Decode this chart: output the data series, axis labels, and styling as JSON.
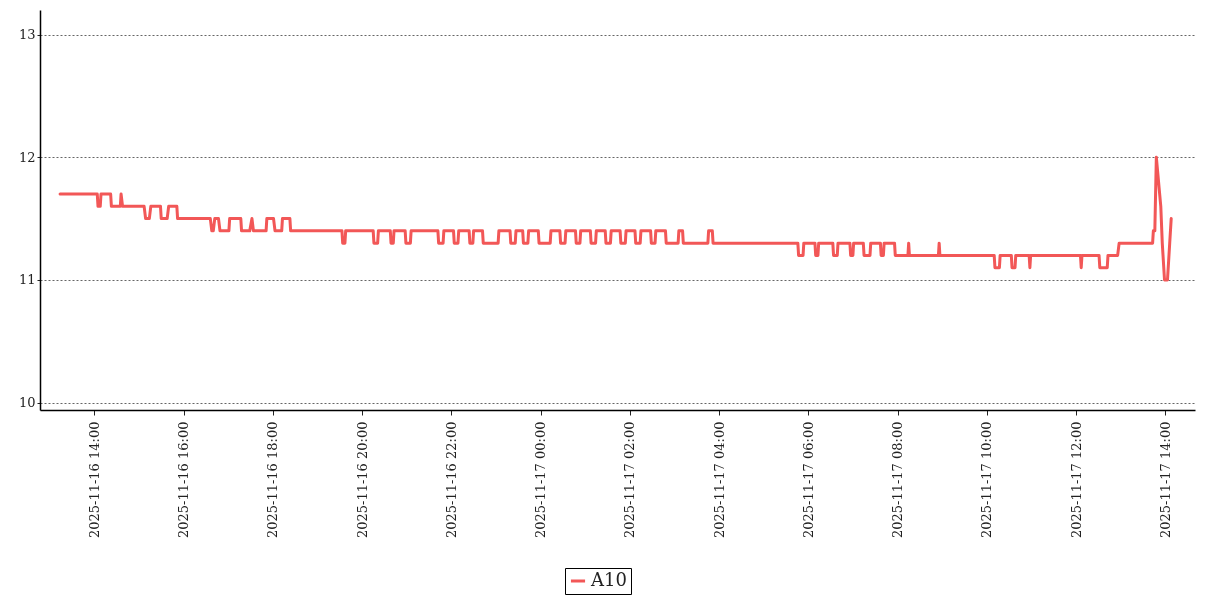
{
  "chart_data": {
    "type": "line",
    "legend": "bottom",
    "grid": "y",
    "line_style": "solid",
    "marker": "none",
    "xlim": [
      "2025-11-16T12:47",
      "2025-11-17T14:40"
    ],
    "xticks": [
      {
        "value": "2025-11-16T14:00",
        "label": "2025-11-16 14:00"
      },
      {
        "value": "2025-11-16T16:00",
        "label": "2025-11-16 16:00"
      },
      {
        "value": "2025-11-16T18:00",
        "label": "2025-11-16 18:00"
      },
      {
        "value": "2025-11-16T20:00",
        "label": "2025-11-16 20:00"
      },
      {
        "value": "2025-11-16T22:00",
        "label": "2025-11-16 22:00"
      },
      {
        "value": "2025-11-17T00:00",
        "label": "2025-11-17 00:00"
      },
      {
        "value": "2025-11-17T02:00",
        "label": "2025-11-17 02:00"
      },
      {
        "value": "2025-11-17T04:00",
        "label": "2025-11-17 04:00"
      },
      {
        "value": "2025-11-17T06:00",
        "label": "2025-11-17 06:00"
      },
      {
        "value": "2025-11-17T08:00",
        "label": "2025-11-17 08:00"
      },
      {
        "value": "2025-11-17T10:00",
        "label": "2025-11-17 10:00"
      },
      {
        "value": "2025-11-17T12:00",
        "label": "2025-11-17 12:00"
      },
      {
        "value": "2025-11-17T14:00",
        "label": "2025-11-17 14:00"
      }
    ],
    "ylim": [
      9.94,
      13.2
    ],
    "yticks": [
      10,
      11,
      12,
      13
    ],
    "x": [
      "2025-11-16T13:14",
      "2025-11-16T14:04",
      "2025-11-16T14:05",
      "2025-11-16T14:08",
      "2025-11-16T14:09",
      "2025-11-16T14:22",
      "2025-11-16T14:23",
      "2025-11-16T14:35",
      "2025-11-16T14:36",
      "2025-11-16T14:38",
      "2025-11-16T15:07",
      "2025-11-16T15:09",
      "2025-11-16T15:14",
      "2025-11-16T15:16",
      "2025-11-16T15:29",
      "2025-11-16T15:30",
      "2025-11-16T15:38",
      "2025-11-16T15:40",
      "2025-11-16T15:51",
      "2025-11-16T15:52",
      "2025-11-16T16:36",
      "2025-11-16T16:38",
      "2025-11-16T16:40",
      "2025-11-16T16:42",
      "2025-11-16T16:47",
      "2025-11-16T16:49",
      "2025-11-16T17:01",
      "2025-11-16T17:02",
      "2025-11-16T17:17",
      "2025-11-16T17:18",
      "2025-11-16T17:29",
      "2025-11-16T17:32",
      "2025-11-16T17:34",
      "2025-11-16T17:51",
      "2025-11-16T17:52",
      "2025-11-16T18:01",
      "2025-11-16T18:03",
      "2025-11-16T18:12",
      "2025-11-16T18:13",
      "2025-11-16T18:23",
      "2025-11-16T18:24",
      "2025-11-16T19:33",
      "2025-11-16T19:34",
      "2025-11-16T19:37",
      "2025-11-16T19:38",
      "2025-11-16T20:15",
      "2025-11-16T20:16",
      "2025-11-16T20:21",
      "2025-11-16T20:22",
      "2025-11-16T20:38",
      "2025-11-16T20:39",
      "2025-11-16T20:42",
      "2025-11-16T20:43",
      "2025-11-16T20:58",
      "2025-11-16T20:59",
      "2025-11-16T21:05",
      "2025-11-16T21:06",
      "2025-11-16T21:42",
      "2025-11-16T21:43",
      "2025-11-16T21:49",
      "2025-11-16T21:50",
      "2025-11-16T22:03",
      "2025-11-16T22:04",
      "2025-11-16T22:09",
      "2025-11-16T22:10",
      "2025-11-16T22:24",
      "2025-11-16T22:25",
      "2025-11-16T22:29",
      "2025-11-16T22:30",
      "2025-11-16T22:42",
      "2025-11-16T22:43",
      "2025-11-16T23:03",
      "2025-11-16T23:04",
      "2025-11-16T23:19",
      "2025-11-16T23:20",
      "2025-11-16T23:26",
      "2025-11-16T23:27",
      "2025-11-16T23:36",
      "2025-11-16T23:37",
      "2025-11-16T23:43",
      "2025-11-16T23:44",
      "2025-11-16T23:57",
      "2025-11-16T23:58",
      "2025-11-17T00:13",
      "2025-11-17T00:14",
      "2025-11-17T00:26",
      "2025-11-17T00:27",
      "2025-11-17T00:33",
      "2025-11-17T00:34",
      "2025-11-17T00:47",
      "2025-11-17T00:48",
      "2025-11-17T00:53",
      "2025-11-17T00:54",
      "2025-11-17T01:07",
      "2025-11-17T01:08",
      "2025-11-17T01:14",
      "2025-11-17T01:15",
      "2025-11-17T01:27",
      "2025-11-17T01:28",
      "2025-11-17T01:34",
      "2025-11-17T01:35",
      "2025-11-17T01:47",
      "2025-11-17T01:48",
      "2025-11-17T01:54",
      "2025-11-17T01:55",
      "2025-11-17T02:07",
      "2025-11-17T02:08",
      "2025-11-17T02:14",
      "2025-11-17T02:15",
      "2025-11-17T02:28",
      "2025-11-17T02:29",
      "2025-11-17T02:34",
      "2025-11-17T02:35",
      "2025-11-17T02:48",
      "2025-11-17T02:49",
      "2025-11-17T03:05",
      "2025-11-17T03:06",
      "2025-11-17T03:11",
      "2025-11-17T03:12",
      "2025-11-17T03:45",
      "2025-11-17T03:46",
      "2025-11-17T03:51",
      "2025-11-17T03:52",
      "2025-11-17T05:46",
      "2025-11-17T05:47",
      "2025-11-17T05:53",
      "2025-11-17T05:54",
      "2025-11-17T06:09",
      "2025-11-17T06:10",
      "2025-11-17T06:13",
      "2025-11-17T06:14",
      "2025-11-17T06:33",
      "2025-11-17T06:34",
      "2025-11-17T06:39",
      "2025-11-17T06:40",
      "2025-11-17T06:56",
      "2025-11-17T06:57",
      "2025-11-17T07:00",
      "2025-11-17T07:01",
      "2025-11-17T07:14",
      "2025-11-17T07:15",
      "2025-11-17T07:23",
      "2025-11-17T07:24",
      "2025-11-17T07:37",
      "2025-11-17T07:38",
      "2025-11-17T07:41",
      "2025-11-17T07:42",
      "2025-11-17T07:56",
      "2025-11-17T07:57",
      "2025-11-17T08:14",
      "2025-11-17T08:15",
      "2025-11-17T08:16",
      "2025-11-17T08:55",
      "2025-11-17T08:56",
      "2025-11-17T08:57",
      "2025-11-17T10:10",
      "2025-11-17T10:11",
      "2025-11-17T10:17",
      "2025-11-17T10:18",
      "2025-11-17T10:33",
      "2025-11-17T10:34",
      "2025-11-17T10:38",
      "2025-11-17T10:39",
      "2025-11-17T10:57",
      "2025-11-17T10:58",
      "2025-11-17T10:59",
      "2025-11-17T12:06",
      "2025-11-17T12:07",
      "2025-11-17T12:08",
      "2025-11-17T12:31",
      "2025-11-17T12:32",
      "2025-11-17T12:42",
      "2025-11-17T12:43",
      "2025-11-17T12:56",
      "2025-11-17T12:58",
      "2025-11-17T13:43",
      "2025-11-17T13:44",
      "2025-11-17T13:46",
      "2025-11-17T13:48",
      "2025-11-17T13:54",
      "2025-11-17T13:56",
      "2025-11-17T13:59",
      "2025-11-17T14:03",
      "2025-11-17T14:06",
      "2025-11-17T14:08"
    ],
    "series": [
      {
        "name": "A10",
        "color": "#f25757",
        "values": [
          11.7,
          11.7,
          11.6,
          11.6,
          11.7,
          11.7,
          11.6,
          11.6,
          11.7,
          11.6,
          11.6,
          11.5,
          11.5,
          11.6,
          11.6,
          11.5,
          11.5,
          11.6,
          11.6,
          11.5,
          11.5,
          11.4,
          11.4,
          11.5,
          11.5,
          11.4,
          11.4,
          11.5,
          11.5,
          11.4,
          11.4,
          11.5,
          11.4,
          11.4,
          11.5,
          11.5,
          11.4,
          11.4,
          11.5,
          11.5,
          11.4,
          11.4,
          11.3,
          11.3,
          11.4,
          11.4,
          11.3,
          11.3,
          11.4,
          11.4,
          11.3,
          11.3,
          11.4,
          11.4,
          11.3,
          11.3,
          11.4,
          11.4,
          11.3,
          11.3,
          11.4,
          11.4,
          11.3,
          11.3,
          11.4,
          11.4,
          11.3,
          11.3,
          11.4,
          11.4,
          11.3,
          11.3,
          11.4,
          11.4,
          11.3,
          11.3,
          11.4,
          11.4,
          11.3,
          11.3,
          11.4,
          11.4,
          11.3,
          11.3,
          11.4,
          11.4,
          11.3,
          11.3,
          11.4,
          11.4,
          11.3,
          11.3,
          11.4,
          11.4,
          11.3,
          11.3,
          11.4,
          11.4,
          11.3,
          11.3,
          11.4,
          11.4,
          11.3,
          11.3,
          11.4,
          11.4,
          11.3,
          11.3,
          11.4,
          11.4,
          11.3,
          11.3,
          11.4,
          11.4,
          11.3,
          11.3,
          11.4,
          11.4,
          11.3,
          11.3,
          11.4,
          11.4,
          11.3,
          11.3,
          11.2,
          11.2,
          11.3,
          11.3,
          11.2,
          11.2,
          11.3,
          11.3,
          11.2,
          11.2,
          11.3,
          11.3,
          11.2,
          11.2,
          11.3,
          11.3,
          11.2,
          11.2,
          11.3,
          11.3,
          11.2,
          11.2,
          11.3,
          11.3,
          11.2,
          11.2,
          11.3,
          11.2,
          11.2,
          11.3,
          11.2,
          11.2,
          11.1,
          11.1,
          11.2,
          11.2,
          11.1,
          11.1,
          11.2,
          11.2,
          11.1,
          11.2,
          11.2,
          11.1,
          11.2,
          11.2,
          11.1,
          11.1,
          11.2,
          11.2,
          11.3,
          11.3,
          11.4,
          11.4,
          12.0,
          11.6,
          11.3,
          11.0,
          11.0,
          11.3,
          11.5
        ]
      }
    ]
  }
}
